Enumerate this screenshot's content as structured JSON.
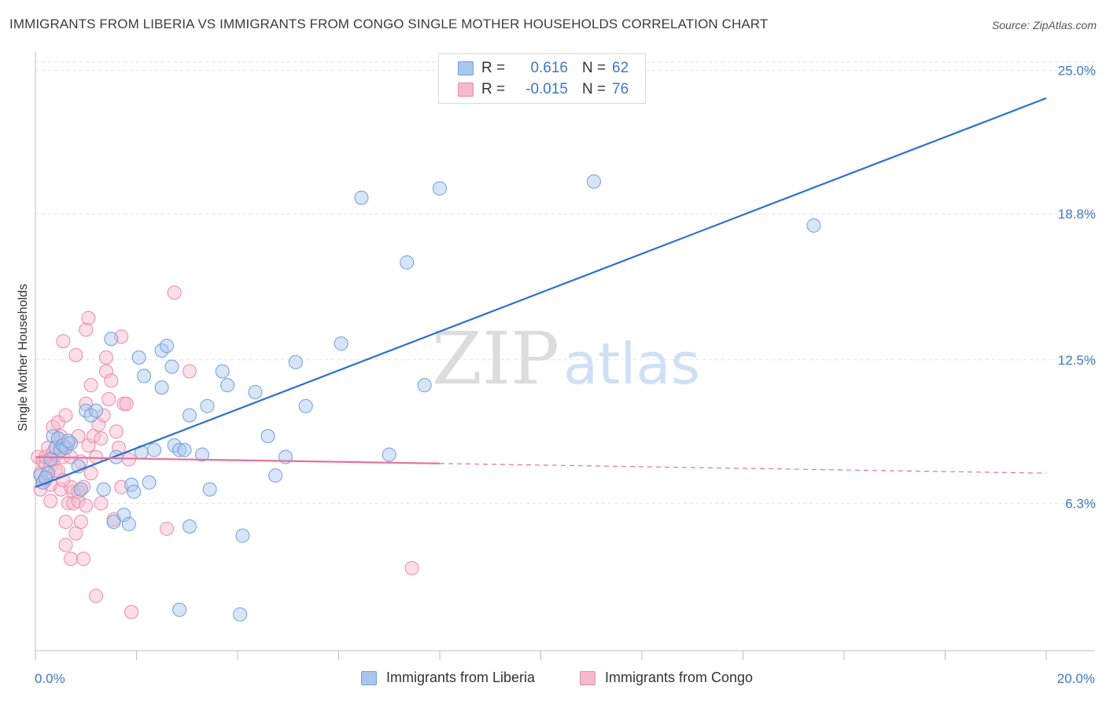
{
  "title": "IMMIGRANTS FROM LIBERIA VS IMMIGRANTS FROM CONGO SINGLE MOTHER HOUSEHOLDS CORRELATION CHART",
  "source": "Source: ZipAtlas.com",
  "watermark": {
    "zip": "ZIP",
    "atlas": "atlas"
  },
  "colors": {
    "liberia_fill": "#a9c6ee",
    "liberia_stroke": "#6f9fdc",
    "liberia_line": "#2f6fcf",
    "congo_fill": "#f6b9cc",
    "congo_stroke": "#ec8aaa",
    "congo_line": "#e4729a",
    "accent_text": "#3e77c8",
    "grid": "#e3e3e3"
  },
  "legend": {
    "liberia": {
      "r_label": "R =",
      "r_value": "0.616",
      "n_label": "N =",
      "n_value": "62"
    },
    "congo": {
      "r_label": "R =",
      "r_value": "-0.015",
      "n_label": "N =",
      "n_value": "76"
    }
  },
  "bottom_legend": {
    "liberia": "Immigrants from Liberia",
    "congo": "Immigrants from Congo"
  },
  "chart_data": {
    "type": "scatter",
    "title": "IMMIGRANTS FROM LIBERIA VS IMMIGRANTS FROM CONGO SINGLE MOTHER HOUSEHOLDS CORRELATION CHART",
    "xlabel": "",
    "ylabel": "Single Mother Households",
    "xlim": [
      0,
      20
    ],
    "ylim": [
      0,
      25.8
    ],
    "x_tick_labels": [
      {
        "value": 0,
        "label": "0.0%"
      },
      {
        "value": 20,
        "label": "20.0%"
      }
    ],
    "y_tick_labels": [
      {
        "value": 6.3,
        "label": "6.3%"
      },
      {
        "value": 12.5,
        "label": "12.5%"
      },
      {
        "value": 18.8,
        "label": "18.8%"
      },
      {
        "value": 25.0,
        "label": "25.0%"
      }
    ],
    "grid": true,
    "series": [
      {
        "name": "Immigrants from Liberia",
        "trend": {
          "x0": 0,
          "y0": 7.0,
          "x1": 20,
          "y1": 23.8,
          "dashed_from": null
        },
        "points": [
          [
            0.1,
            7.5
          ],
          [
            0.15,
            7.2
          ],
          [
            0.25,
            7.6
          ],
          [
            0.3,
            8.2
          ],
          [
            0.35,
            9.2
          ],
          [
            0.4,
            8.7
          ],
          [
            0.45,
            9.1
          ],
          [
            0.5,
            8.6
          ],
          [
            0.55,
            8.8
          ],
          [
            0.6,
            8.7
          ],
          [
            0.7,
            8.9
          ],
          [
            0.85,
            7.9
          ],
          [
            0.9,
            6.9
          ],
          [
            1.0,
            10.3
          ],
          [
            1.1,
            10.1
          ],
          [
            1.2,
            10.3
          ],
          [
            1.35,
            6.9
          ],
          [
            1.5,
            13.4
          ],
          [
            1.6,
            8.3
          ],
          [
            1.55,
            5.5
          ],
          [
            1.75,
            5.8
          ],
          [
            1.85,
            5.4
          ],
          [
            1.9,
            7.1
          ],
          [
            1.95,
            6.8
          ],
          [
            2.05,
            12.6
          ],
          [
            2.1,
            8.5
          ],
          [
            2.15,
            11.8
          ],
          [
            2.25,
            7.2
          ],
          [
            2.35,
            8.6
          ],
          [
            2.5,
            12.9
          ],
          [
            2.5,
            11.3
          ],
          [
            2.6,
            13.1
          ],
          [
            2.7,
            12.2
          ],
          [
            2.75,
            8.8
          ],
          [
            2.85,
            8.6
          ],
          [
            2.85,
            1.7
          ],
          [
            2.95,
            8.6
          ],
          [
            3.05,
            10.1
          ],
          [
            3.05,
            5.3
          ],
          [
            3.3,
            8.4
          ],
          [
            3.4,
            10.5
          ],
          [
            3.45,
            6.9
          ],
          [
            3.7,
            12.0
          ],
          [
            3.8,
            11.4
          ],
          [
            4.05,
            1.5
          ],
          [
            4.1,
            4.9
          ],
          [
            4.35,
            11.1
          ],
          [
            4.6,
            9.2
          ],
          [
            4.75,
            7.5
          ],
          [
            4.95,
            8.3
          ],
          [
            5.15,
            12.4
          ],
          [
            5.35,
            10.5
          ],
          [
            6.05,
            13.2
          ],
          [
            6.45,
            19.5
          ],
          [
            7.0,
            8.4
          ],
          [
            7.35,
            16.7
          ],
          [
            7.7,
            11.4
          ],
          [
            8.0,
            19.9
          ],
          [
            11.05,
            20.2
          ],
          [
            15.4,
            18.3
          ],
          [
            0.2,
            7.4
          ],
          [
            0.65,
            9.0
          ]
        ]
      },
      {
        "name": "Immigrants from Congo",
        "trend": {
          "x0": 0,
          "y0": 8.3,
          "x1": 20,
          "y1": 7.6,
          "dashed_from": 8.0
        },
        "points": [
          [
            0.05,
            8.3
          ],
          [
            0.1,
            7.6
          ],
          [
            0.1,
            6.9
          ],
          [
            0.15,
            8.1
          ],
          [
            0.2,
            7.3
          ],
          [
            0.2,
            8.0
          ],
          [
            0.25,
            7.6
          ],
          [
            0.25,
            8.7
          ],
          [
            0.3,
            7.1
          ],
          [
            0.3,
            7.9
          ],
          [
            0.35,
            8.2
          ],
          [
            0.35,
            9.6
          ],
          [
            0.4,
            7.7
          ],
          [
            0.4,
            8.4
          ],
          [
            0.45,
            9.8
          ],
          [
            0.45,
            9.1
          ],
          [
            0.5,
            6.9
          ],
          [
            0.55,
            8.3
          ],
          [
            0.55,
            13.3
          ],
          [
            0.6,
            5.5
          ],
          [
            0.6,
            4.5
          ],
          [
            0.65,
            8.9
          ],
          [
            0.65,
            6.3
          ],
          [
            0.7,
            3.9
          ],
          [
            0.7,
            8.3
          ],
          [
            0.75,
            6.8
          ],
          [
            0.75,
            6.3
          ],
          [
            0.8,
            12.7
          ],
          [
            0.8,
            5.0
          ],
          [
            0.85,
            6.4
          ],
          [
            0.85,
            9.2
          ],
          [
            0.9,
            5.5
          ],
          [
            0.9,
            8.1
          ],
          [
            0.95,
            3.9
          ],
          [
            0.95,
            7.0
          ],
          [
            1.0,
            13.8
          ],
          [
            1.0,
            10.6
          ],
          [
            1.05,
            14.3
          ],
          [
            1.05,
            8.8
          ],
          [
            1.1,
            11.4
          ],
          [
            1.1,
            7.6
          ],
          [
            1.15,
            9.2
          ],
          [
            1.2,
            8.3
          ],
          [
            1.25,
            9.7
          ],
          [
            1.3,
            6.3
          ],
          [
            1.35,
            10.1
          ],
          [
            1.4,
            12.0
          ],
          [
            1.45,
            10.8
          ],
          [
            1.5,
            11.6
          ],
          [
            1.55,
            5.6
          ],
          [
            1.6,
            9.4
          ],
          [
            1.65,
            8.7
          ],
          [
            1.7,
            7.0
          ],
          [
            1.7,
            13.5
          ],
          [
            1.75,
            10.6
          ],
          [
            1.8,
            10.6
          ],
          [
            1.85,
            8.2
          ],
          [
            1.9,
            1.6
          ],
          [
            1.4,
            12.6
          ],
          [
            1.2,
            2.3
          ],
          [
            2.6,
            5.2
          ],
          [
            2.75,
            15.4
          ],
          [
            3.05,
            12.0
          ],
          [
            7.45,
            3.5
          ],
          [
            0.2,
            8.3
          ],
          [
            0.45,
            7.7
          ],
          [
            0.3,
            6.4
          ],
          [
            0.5,
            9.2
          ],
          [
            0.6,
            10.1
          ],
          [
            0.7,
            7.0
          ],
          [
            0.85,
            6.8
          ],
          [
            1.0,
            6.2
          ],
          [
            0.15,
            7.2
          ],
          [
            0.35,
            8.5
          ],
          [
            0.55,
            7.3
          ],
          [
            1.3,
            9.1
          ]
        ]
      }
    ]
  }
}
